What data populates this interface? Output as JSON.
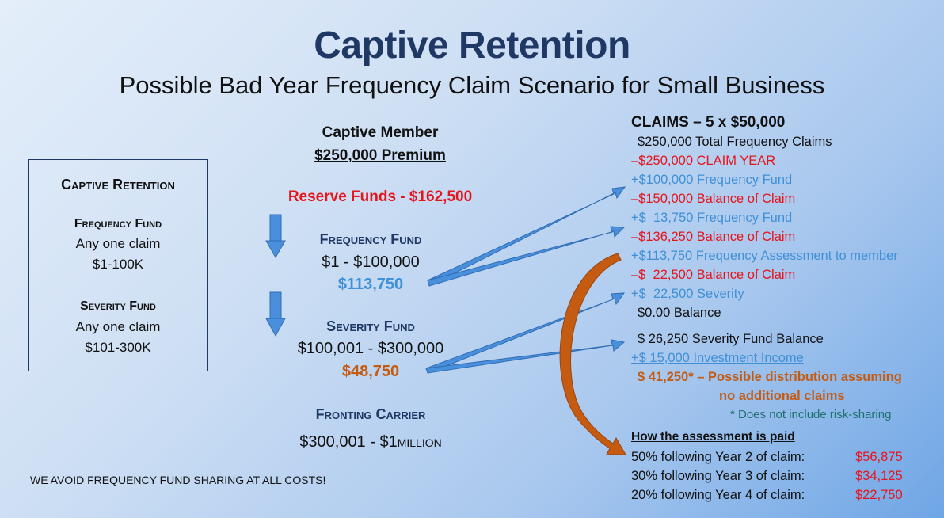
{
  "title": "Captive Retention",
  "subtitle": "Possible Bad Year Frequency Claim Scenario for Small Business",
  "left_box": {
    "heading": "Captive Retention",
    "freq_heading": "Frequency Fund",
    "freq_line1": "Any one claim",
    "freq_line2": "$1-100K",
    "sev_heading": "Severity Fund",
    "sev_line1": "Any one claim",
    "sev_line2": "$101-300K"
  },
  "middle": {
    "member": "Captive Member",
    "premium": "$250,000 Premium",
    "reserve": "Reserve Funds - $162,500",
    "freq_heading": "Frequency Fund",
    "freq_range": "$1 - $100,000",
    "freq_amount": "$113,750",
    "sev_heading": "Severity Fund",
    "sev_range": "$100,001 - $300,000",
    "sev_amount": "$48,750",
    "fronting_heading": "Fronting Carrier",
    "fronting_range_a": "$300,001 - $1",
    "fronting_range_b": "million"
  },
  "footer_note": "WE AVOID FREQUENCY FUND SHARING AT ALL COSTS!",
  "claims": {
    "heading": "CLAIMS – 5 x $50,000",
    "lines": [
      {
        "text": "$250,000 Total Frequency Claims",
        "style": "black"
      },
      {
        "text": "–$250,000 CLAIM YEAR",
        "style": "red"
      },
      {
        "text": "+$100,000 Frequency Fund",
        "style": "blue"
      },
      {
        "text": "–$150,000 Balance of Claim",
        "style": "red"
      },
      {
        "text": "+$  13,750 Frequency Fund",
        "style": "blue"
      },
      {
        "text": "–$136,250 Balance of Claim",
        "style": "red"
      },
      {
        "text": "+$113,750 Frequency Assessment to member",
        "style": "blue"
      },
      {
        "text": "–$  22,500 Balance of Claim",
        "style": "red"
      },
      {
        "text": "+$  22,500 Severity",
        "style": "blue"
      },
      {
        "text": "$0.00 Balance",
        "style": "black"
      }
    ],
    "severity_balance": "$  26,250 Severity Fund Balance",
    "investment_income": "+$  15,000 Investment Income",
    "distribution_1": "$  41,250* – Possible distribution assuming",
    "distribution_2": "no additional claims",
    "footnote": "* Does not include risk-sharing"
  },
  "assessment": {
    "heading": "How the assessment is paid",
    "rows": [
      {
        "label": "50% following Year 2 of claim:",
        "amount": "$56,875"
      },
      {
        "label": "30% following Year 3 of claim:",
        "amount": "$34,125"
      },
      {
        "label": "20% following Year 4 of claim:",
        "amount": "$22,750"
      }
    ]
  },
  "colors": {
    "navy": "#1f3864",
    "red": "#e8141b",
    "blue": "#3f90d6",
    "orange": "#c55a11",
    "arrow_fill": "#4a8fdc",
    "curve_fill": "#c55a11"
  }
}
